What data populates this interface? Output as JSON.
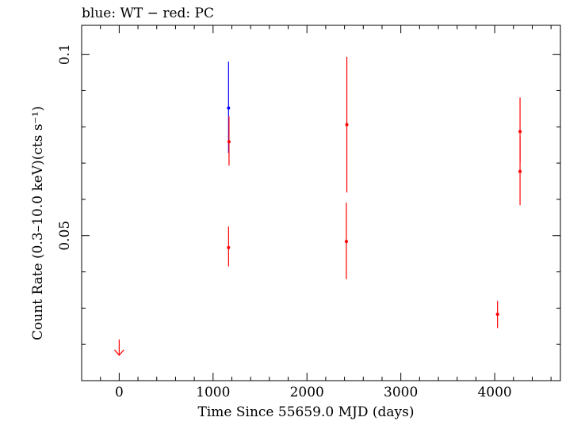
{
  "header": {
    "title": "blue: WT − red: PC"
  },
  "colors": {
    "wt": "#0000ff",
    "pc": "#ff0000",
    "axis": "#000000"
  },
  "chart_data": {
    "type": "scatter",
    "title": "blue: WT − red: PC",
    "xlabel": "Time Since 55659.0 MJD (days)",
    "ylabel": "Count Rate (0.3–10.0 keV)(cts s⁻¹)",
    "xlim": [
      -400,
      4700
    ],
    "ylim": [
      0.01,
      0.108
    ],
    "x_ticks": [
      0,
      1000,
      2000,
      3000,
      4000
    ],
    "x_tick_labels": [
      "0",
      "1000",
      "2000",
      "3000",
      "4000"
    ],
    "y_ticks": [
      0.05,
      0.1
    ],
    "y_tick_labels": [
      "0.05",
      "0.1"
    ],
    "grid": false,
    "series": [
      {
        "name": "WT",
        "color": "#0000ff",
        "points": [
          {
            "x": 1165,
            "y": 0.0852,
            "y_low": 0.0728,
            "y_high": 0.098
          }
        ]
      },
      {
        "name": "PC",
        "color": "#ff0000",
        "points": [
          {
            "x": 1170,
            "y": 0.0759,
            "y_low": 0.0693,
            "y_high": 0.0829
          },
          {
            "x": 1165,
            "y": 0.0467,
            "y_low": 0.0415,
            "y_high": 0.0525
          },
          {
            "x": 2425,
            "y": 0.0806,
            "y_low": 0.0619,
            "y_high": 0.0993
          },
          {
            "x": 2420,
            "y": 0.0484,
            "y_low": 0.038,
            "y_high": 0.0591
          },
          {
            "x": 4030,
            "y": 0.0283,
            "y_low": 0.0245,
            "y_high": 0.032
          },
          {
            "x": 4270,
            "y": 0.0787,
            "y_low": 0.0702,
            "y_high": 0.0881
          },
          {
            "x": 4270,
            "y": 0.0677,
            "y_low": 0.0584,
            "y_high": 0.0773
          }
        ],
        "upper_limits": [
          {
            "x": 0,
            "y": 0.017
          }
        ]
      }
    ]
  }
}
